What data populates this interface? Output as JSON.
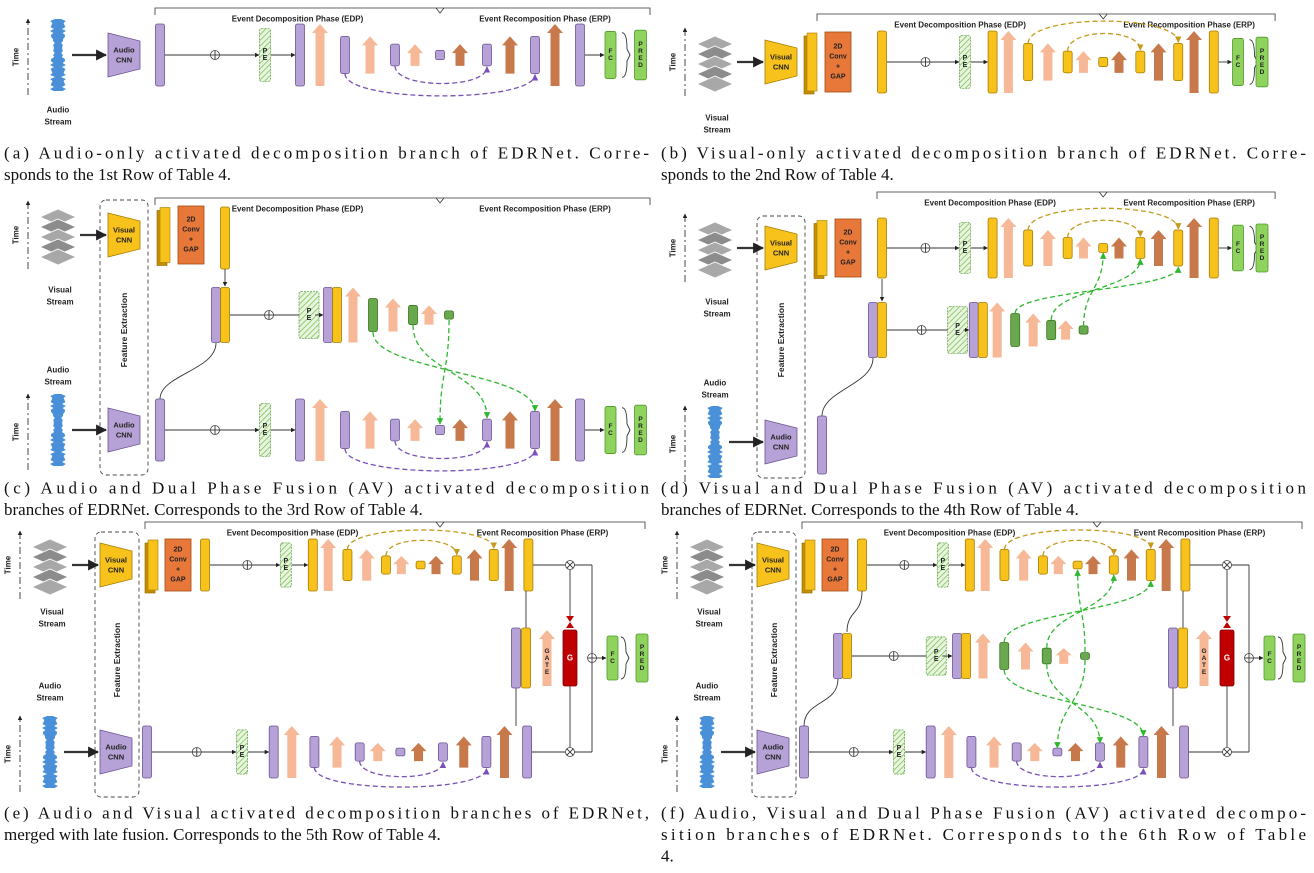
{
  "labels": {
    "edp": "Event Decomposition Phase (EDP)",
    "erp": "Event Recomposition Phase (ERP)",
    "time": "Time",
    "audio_stream": [
      "Audio",
      "Stream"
    ],
    "visual_stream": [
      "Visual",
      "Stream"
    ],
    "audio_cnn": [
      "Audio",
      "CNN"
    ],
    "visual_cnn": [
      "Visual",
      "CNN"
    ],
    "conv": [
      "2D",
      "Conv",
      "+",
      "GAP"
    ],
    "pe": "PE",
    "fc": "FC",
    "pred": "PRED",
    "feature_extraction": "Feature Extraction",
    "gate": "GATE",
    "g": "G"
  },
  "panels": [
    {
      "caption": [
        "(a) Audio-only activated decomposition branch of EDRNet. Corre-",
        "sponds to the 1st Row of Table 4."
      ]
    },
    {
      "caption": [
        "(b) Visual-only activated decomposition branch of EDRNet. Corre-",
        "sponds to the 2nd Row of Table 4."
      ]
    },
    {
      "caption": [
        "(c) Audio and Dual Phase Fusion (AV) activated decomposition",
        "branches of EDRNet. Corresponds to the 3rd Row of Table 4."
      ]
    },
    {
      "caption": [
        "(d) Visual and Dual Phase Fusion (AV) activated decomposition",
        "branches of EDRNet. Corresponds to the 4th Row of Table 4."
      ]
    },
    {
      "caption": [
        "(e) Audio and Visual activated decomposition branches of EDRNet,",
        "merged with late fusion. Corresponds to the 5th Row of Table 4."
      ]
    },
    {
      "caption": [
        "(f) Audio, Visual and Dual Phase Fusion (AV) activated decompo-",
        "sition branches of EDRNet. Corresponds to the 6th Row of Table",
        "4."
      ]
    }
  ]
}
